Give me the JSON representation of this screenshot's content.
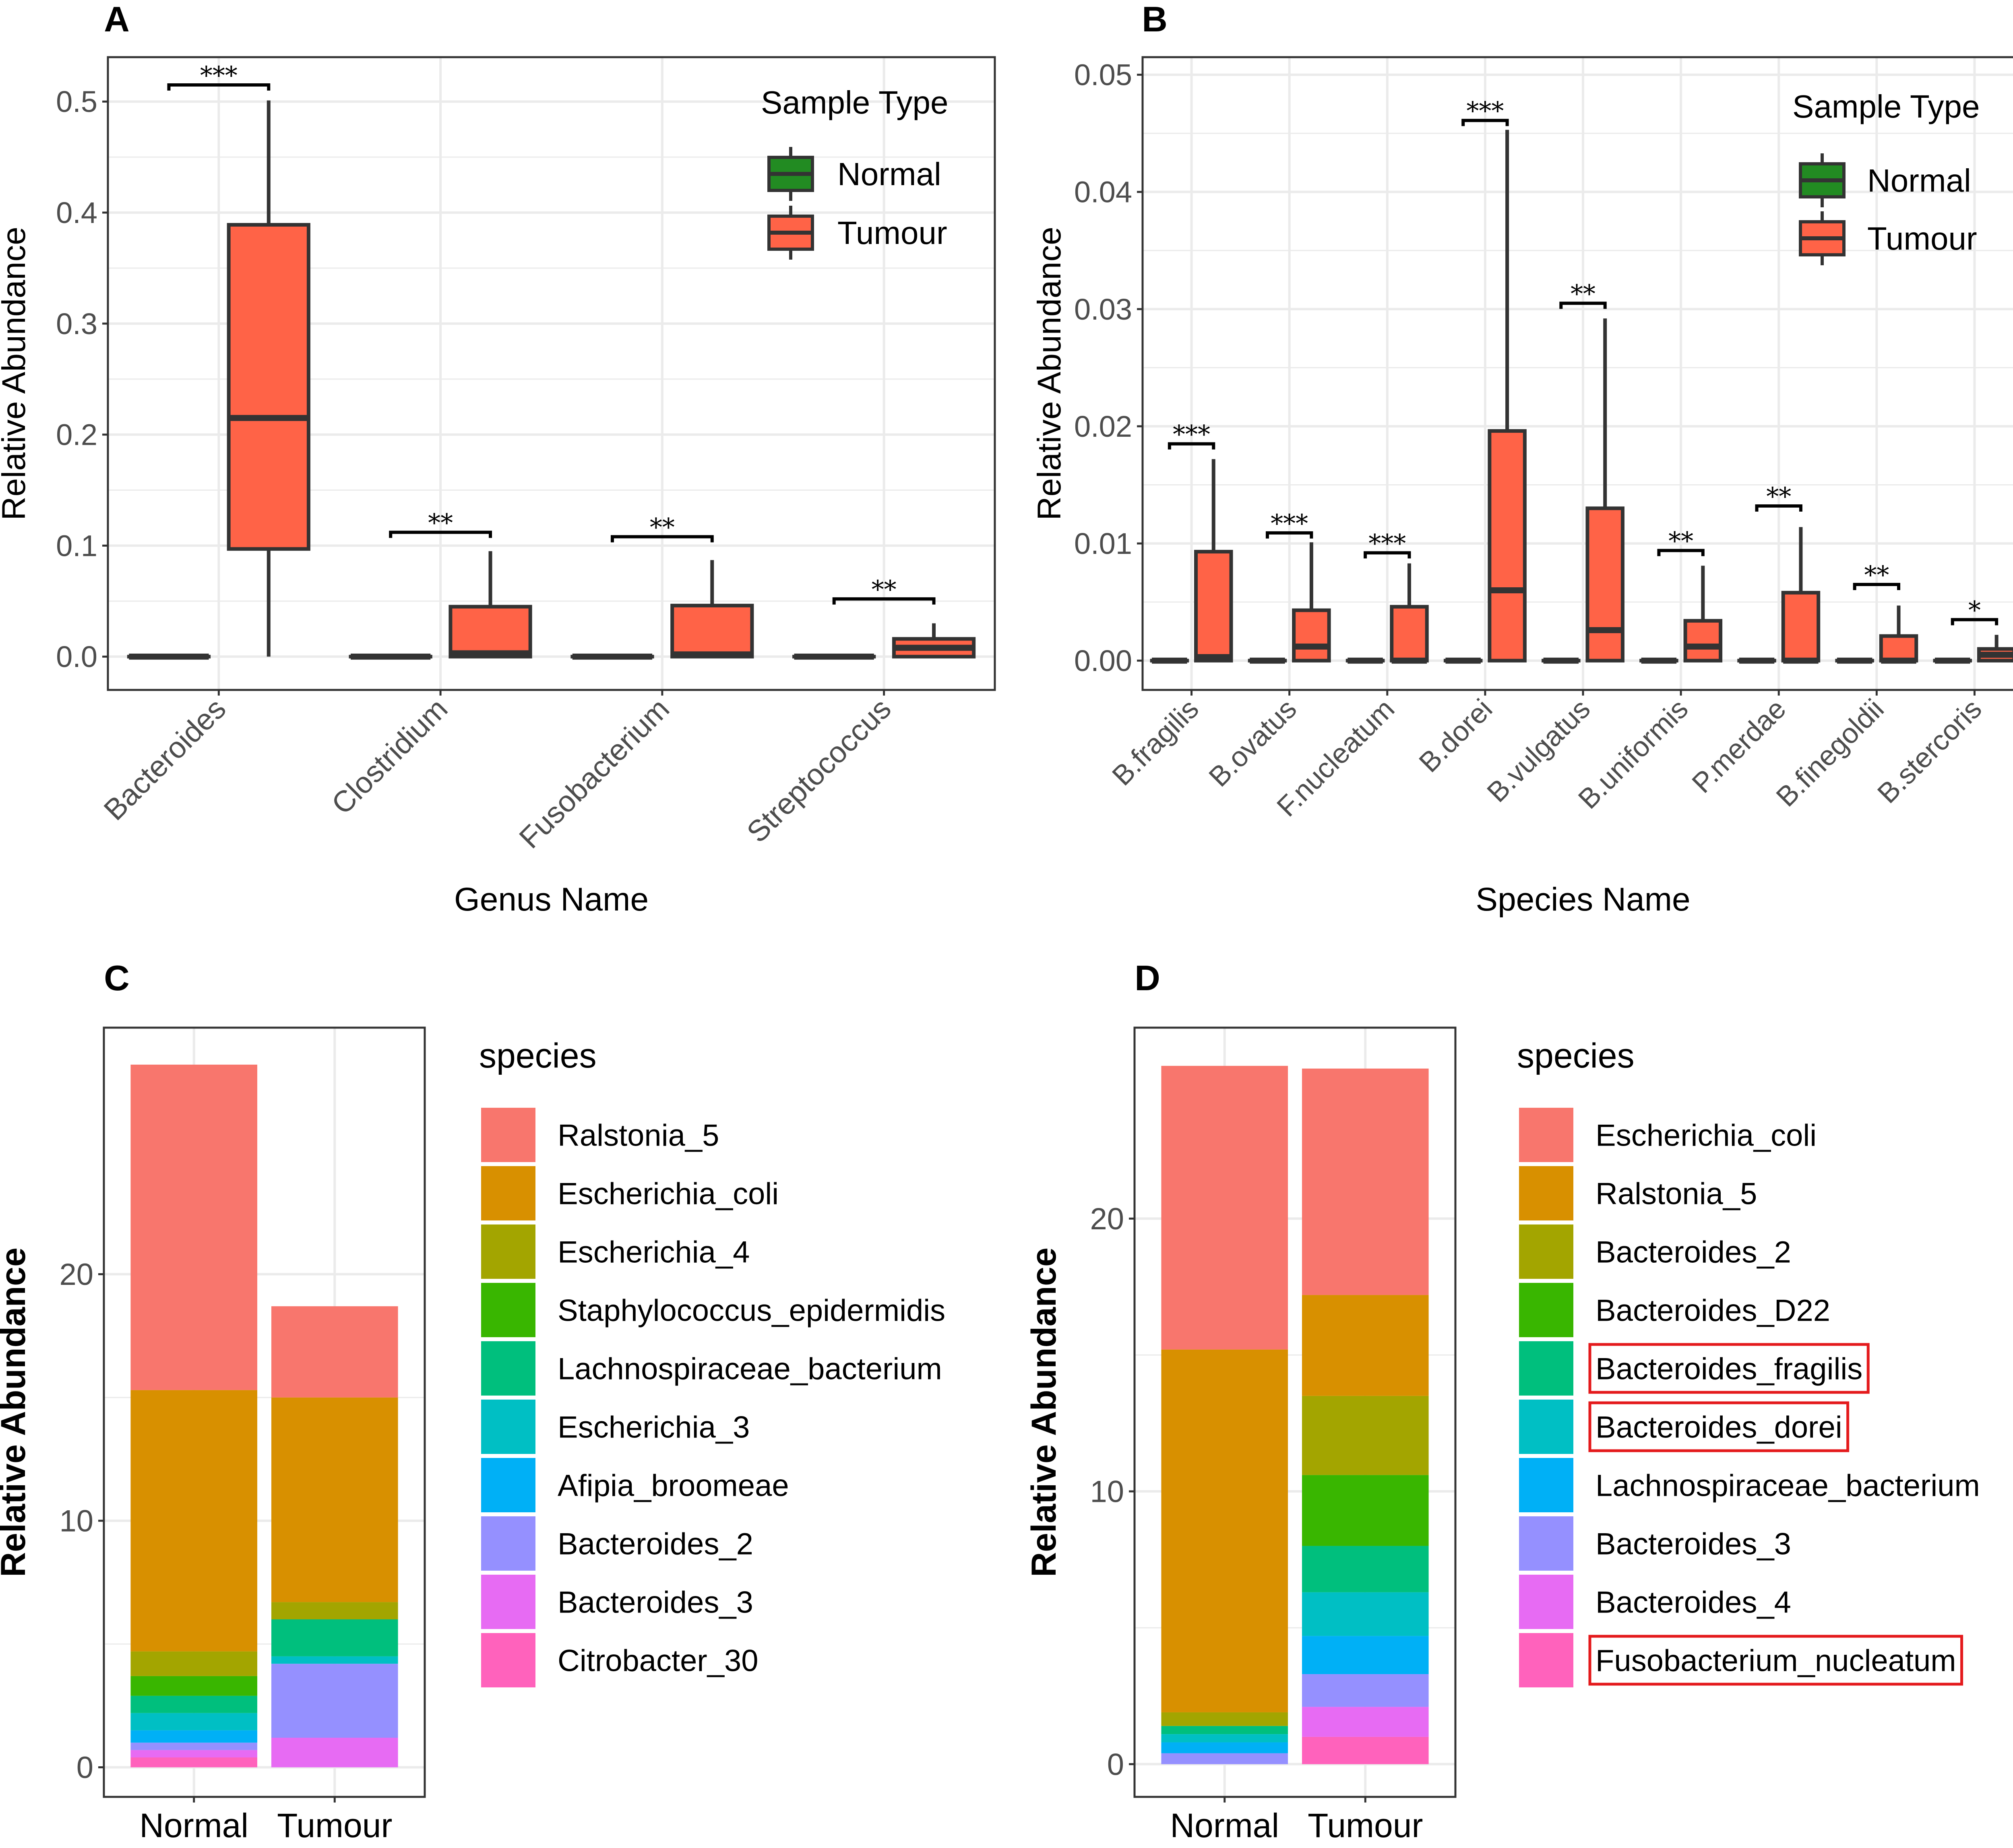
{
  "chart_data": [
    {
      "panel": "A",
      "type": "boxplot",
      "xlabel": "Genus Name",
      "ylabel": "Relative Abundance",
      "ylim": [
        -0.03,
        0.54
      ],
      "yticks": [
        0.0,
        0.1,
        0.2,
        0.3,
        0.4,
        0.5
      ],
      "ytick_labels": [
        "0.0",
        "0.1",
        "0.2",
        "0.3",
        "0.4",
        "0.5"
      ],
      "categories": [
        "Bacteroides",
        "Clostridium",
        "Fusobacterium",
        "Streptococcus"
      ],
      "legend": {
        "title": "Sample Type",
        "entries": [
          "Normal",
          "Tumour"
        ]
      },
      "series": [
        {
          "name": "Normal",
          "color": "#228B22",
          "boxes": [
            {
              "min": 0,
              "q1": 0,
              "median": 0,
              "q3": 0,
              "max": 0
            },
            {
              "min": 0,
              "q1": 0,
              "median": 0,
              "q3": 0,
              "max": 0
            },
            {
              "min": 0,
              "q1": 0,
              "median": 0,
              "q3": 0,
              "max": 0
            },
            {
              "min": 0,
              "q1": 0,
              "median": 0,
              "q3": 0,
              "max": 0
            }
          ]
        },
        {
          "name": "Tumour",
          "color": "#FF6347",
          "boxes": [
            {
              "min": 0,
              "q1": 0.097,
              "median": 0.215,
              "q3": 0.389,
              "max": 0.501
            },
            {
              "min": 0,
              "q1": 0,
              "median": 0.003,
              "q3": 0.045,
              "max": 0.095
            },
            {
              "min": 0,
              "q1": 0,
              "median": 0.002,
              "q3": 0.046,
              "max": 0.087
            },
            {
              "min": 0,
              "q1": 0,
              "median": 0.008,
              "q3": 0.016,
              "max": 0.03
            }
          ]
        }
      ],
      "significance": [
        {
          "category": "Bacteroides",
          "label": "***",
          "y": 0.515
        },
        {
          "category": "Clostridium",
          "label": "**",
          "y": 0.112
        },
        {
          "category": "Fusobacterium",
          "label": "**",
          "y": 0.108
        },
        {
          "category": "Streptococcus",
          "label": "**",
          "y": 0.052
        }
      ]
    },
    {
      "panel": "B",
      "type": "boxplot",
      "xlabel": "Species Name",
      "ylabel": "Relative Abundance",
      "ylim": [
        -0.0025,
        0.0515
      ],
      "yticks": [
        0.0,
        0.01,
        0.02,
        0.03,
        0.04,
        0.05
      ],
      "ytick_labels": [
        "0.00",
        "0.01",
        "0.02",
        "0.03",
        "0.04",
        "0.05"
      ],
      "categories": [
        "B.fragilis",
        "B.ovatus",
        "F.nucleatum",
        "B.dorei",
        "B.vulgatus",
        "B.uniformis",
        "P.merdae",
        "B.finegoldii",
        "B.stercoris"
      ],
      "legend": {
        "title": "Sample Type",
        "entries": [
          "Normal",
          "Tumour"
        ]
      },
      "series": [
        {
          "name": "Normal",
          "color": "#228B22",
          "boxes": [
            {
              "min": 0,
              "q1": 0,
              "median": 0,
              "q3": 0,
              "max": 0
            },
            {
              "min": 0,
              "q1": 0,
              "median": 0,
              "q3": 0,
              "max": 0
            },
            {
              "min": 0,
              "q1": 0,
              "median": 0,
              "q3": 0,
              "max": 0
            },
            {
              "min": 0,
              "q1": 0,
              "median": 0,
              "q3": 0,
              "max": 0
            },
            {
              "min": 0,
              "q1": 0,
              "median": 0,
              "q3": 0,
              "max": 0
            },
            {
              "min": 0,
              "q1": 0,
              "median": 0,
              "q3": 0,
              "max": 0
            },
            {
              "min": 0,
              "q1": 0,
              "median": 0,
              "q3": 0,
              "max": 0
            },
            {
              "min": 0,
              "q1": 0,
              "median": 0,
              "q3": 0,
              "max": 0
            },
            {
              "min": 0,
              "q1": 0,
              "median": 0,
              "q3": 0,
              "max": 0
            }
          ]
        },
        {
          "name": "Tumour",
          "color": "#FF6347",
          "boxes": [
            {
              "min": 0,
              "q1": 0,
              "median": 0.0003,
              "q3": 0.0093,
              "max": 0.0172
            },
            {
              "min": 0,
              "q1": 0,
              "median": 0.0012,
              "q3": 0.0043,
              "max": 0.0101
            },
            {
              "min": 0,
              "q1": 0,
              "median": 0,
              "q3": 0.0046,
              "max": 0.0083
            },
            {
              "min": 0,
              "q1": 0,
              "median": 0.006,
              "q3": 0.0196,
              "max": 0.0453
            },
            {
              "min": 0,
              "q1": 0,
              "median": 0.0026,
              "q3": 0.013,
              "max": 0.0292
            },
            {
              "min": 0,
              "q1": 0,
              "median": 0.0012,
              "q3": 0.0034,
              "max": 0.0081
            },
            {
              "min": 0,
              "q1": 0,
              "median": 0,
              "q3": 0.0058,
              "max": 0.0114
            },
            {
              "min": 0,
              "q1": 0,
              "median": 0,
              "q3": 0.0021,
              "max": 0.0047
            },
            {
              "min": 0,
              "q1": 0,
              "median": 0.0005,
              "q3": 0.001,
              "max": 0.0022
            }
          ]
        }
      ],
      "significance": [
        {
          "category": "B.fragilis",
          "label": "***",
          "y": 0.0185
        },
        {
          "category": "B.ovatus",
          "label": "***",
          "y": 0.0109
        },
        {
          "category": "F.nucleatum",
          "label": "***",
          "y": 0.0092
        },
        {
          "category": "B.dorei",
          "label": "***",
          "y": 0.0461
        },
        {
          "category": "B.vulgatus",
          "label": "**",
          "y": 0.0305
        },
        {
          "category": "B.uniformis",
          "label": "**",
          "y": 0.0094
        },
        {
          "category": "P.merdae",
          "label": "**",
          "y": 0.0132
        },
        {
          "category": "B.finegoldii",
          "label": "**",
          "y": 0.0065
        },
        {
          "category": "B.stercoris",
          "label": "*",
          "y": 0.0035
        }
      ]
    },
    {
      "panel": "C",
      "type": "stacked_bar",
      "xlabel": "",
      "ylabel": "Relative Abundance",
      "ylim": [
        -1.2,
        30.0
      ],
      "yticks": [
        0,
        10,
        20
      ],
      "ytick_labels": [
        "0",
        "10",
        "20"
      ],
      "categories": [
        "Normal",
        "Tumour"
      ],
      "legend": {
        "title": "species"
      },
      "series": [
        {
          "name": "Ralstonia_5",
          "color": "#F8766D",
          "values": [
            13.2,
            3.7
          ]
        },
        {
          "name": "Escherichia_coli",
          "color": "#D89000",
          "values": [
            10.6,
            8.3
          ]
        },
        {
          "name": "Escherichia_4",
          "color": "#A3A500",
          "values": [
            1.0,
            0.7
          ]
        },
        {
          "name": "Staphylococcus_epidermidis",
          "color": "#39B600",
          "values": [
            0.8,
            0.0
          ]
        },
        {
          "name": "Lachnospiraceae_bacterium",
          "color": "#00BF7D",
          "values": [
            0.7,
            1.5
          ]
        },
        {
          "name": "Escherichia_3",
          "color": "#00BFC4",
          "values": [
            0.7,
            0.3
          ]
        },
        {
          "name": "Afipia_broomeae",
          "color": "#00B0F6",
          "values": [
            0.5,
            0.0
          ]
        },
        {
          "name": "Bacteroides_2",
          "color": "#9590FF",
          "values": [
            0.3,
            3.0
          ]
        },
        {
          "name": "Bacteroides_3",
          "color": "#E76BF3",
          "values": [
            0.3,
            1.2
          ]
        },
        {
          "name": "Citrobacter_30",
          "color": "#FF62BC",
          "values": [
            0.4,
            0.0
          ]
        }
      ]
    },
    {
      "panel": "D",
      "type": "stacked_bar",
      "xlabel": "",
      "ylabel": "Relative Abundance",
      "ylim": [
        -1.2,
        27.0
      ],
      "yticks": [
        0,
        10,
        20
      ],
      "ytick_labels": [
        "0",
        "10",
        "20"
      ],
      "categories": [
        "Normal",
        "Tumour"
      ],
      "legend": {
        "title": "species"
      },
      "series": [
        {
          "name": "Escherichia_coli",
          "color": "#F8766D",
          "values": [
            10.4,
            8.3
          ],
          "highlighted": false
        },
        {
          "name": "Ralstonia_5",
          "color": "#D89000",
          "values": [
            13.3,
            3.7
          ],
          "highlighted": false
        },
        {
          "name": "Bacteroides_2",
          "color": "#A3A500",
          "values": [
            0.5,
            2.9
          ],
          "highlighted": false
        },
        {
          "name": "Bacteroides_D22",
          "color": "#39B600",
          "values": [
            0.0,
            2.6
          ],
          "highlighted": false
        },
        {
          "name": "Bacteroides_fragilis",
          "color": "#00BF7D",
          "values": [
            0.3,
            1.7
          ],
          "highlighted": true
        },
        {
          "name": "Bacteroides_dorei",
          "color": "#00BFC4",
          "values": [
            0.3,
            1.6
          ],
          "highlighted": true
        },
        {
          "name": "Lachnospiraceae_bacterium",
          "color": "#00B0F6",
          "values": [
            0.4,
            1.4
          ],
          "highlighted": false
        },
        {
          "name": "Bacteroides_3",
          "color": "#9590FF",
          "values": [
            0.4,
            1.2
          ],
          "highlighted": false
        },
        {
          "name": "Bacteroides_4",
          "color": "#E76BF3",
          "values": [
            0.0,
            1.1
          ],
          "highlighted": false
        },
        {
          "name": "Fusobacterium_nucleatum",
          "color": "#FF62BC",
          "values": [
            0.0,
            1.0
          ],
          "highlighted": true
        }
      ]
    }
  ]
}
